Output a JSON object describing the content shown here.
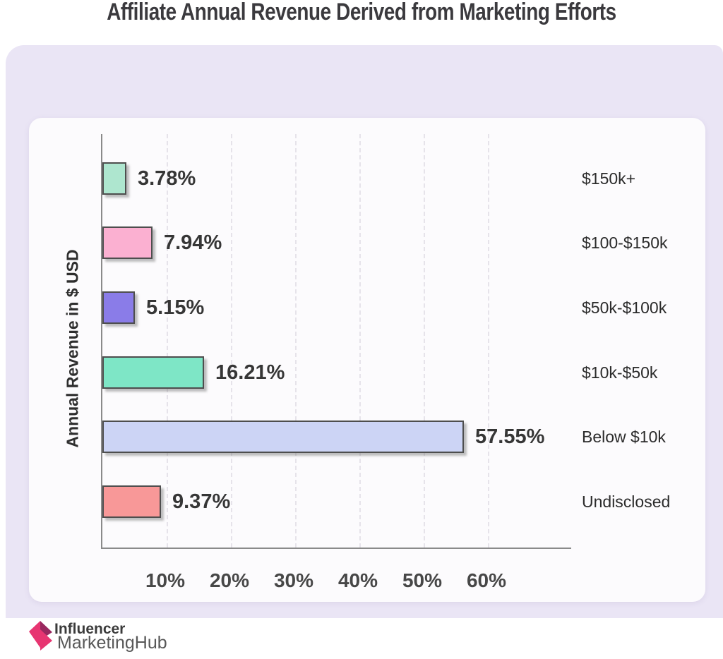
{
  "title": "Affiliate Annual Revenue Derived from Marketing Efforts",
  "chart_data": {
    "type": "bar",
    "orientation": "horizontal",
    "title": "Affiliate Annual Revenue Derived from Marketing Efforts",
    "ylabel": "Annual Revenue in $ USD",
    "xlabel": "",
    "categories": [
      "$150k+",
      "$100-$150k",
      "$50k-$100k",
      "$10k-$50k",
      "Below $10k",
      "Undisclosed"
    ],
    "values": [
      3.78,
      7.94,
      5.15,
      16.21,
      57.55,
      9.37
    ],
    "value_labels": [
      "3.78%",
      "7.94%",
      "5.15%",
      "16.21%",
      "57.55%",
      "9.37%"
    ],
    "bar_colors": [
      "#aee6cf",
      "#fbb0d1",
      "#8a7ce8",
      "#7ee6c6",
      "#ccd4f5",
      "#f89898"
    ],
    "bar_border_color": "#4e4e4e",
    "x_ticks": [
      "10%",
      "20%",
      "30%",
      "40%",
      "50%",
      "60%"
    ],
    "x_tick_values": [
      10,
      20,
      30,
      40,
      50,
      60
    ],
    "xlim": [
      0,
      73
    ],
    "grid": "vertical-dashed",
    "legend": "none"
  },
  "footer_logo": {
    "line1": "Influencer",
    "line2": "MarketingHub",
    "icon": "pink-arrow-left-icon",
    "icon_colors": {
      "pink": "#e73571",
      "maroon": "#99285f"
    }
  },
  "colors": {
    "page_background": "#ffffff",
    "panel_background": "#eae5f5",
    "card_background": "#fcfbfd",
    "axis": "#8a8a8a",
    "gridline": "#e6e3ea",
    "title_text": "#3b3a3e",
    "value_text": "#363636",
    "category_text": "#2b2b2b",
    "tick_text": "#474747"
  }
}
